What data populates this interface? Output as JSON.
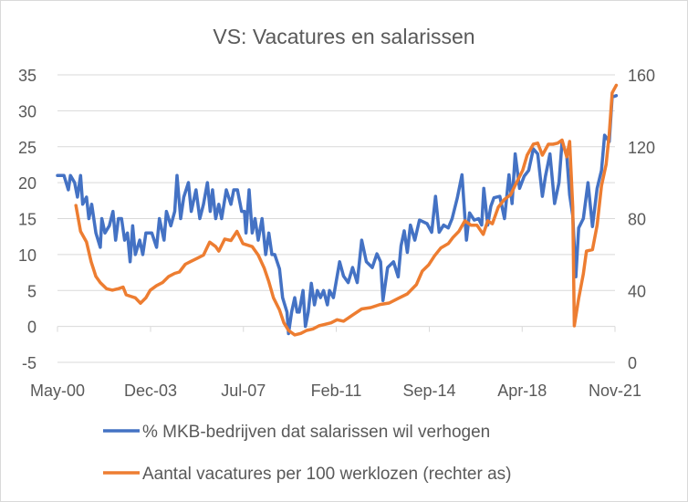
{
  "chart_data": {
    "type": "line",
    "title": "VS: Vacatures en salarissen",
    "xlabel": "",
    "ylabel": "",
    "xlim": [
      2000.33,
      2021.83
    ],
    "ylim_left": [
      -5,
      35
    ],
    "ylim_right": [
      0,
      160
    ],
    "yticks_left": [
      -5,
      0,
      5,
      10,
      15,
      20,
      25,
      30,
      35
    ],
    "yticks_right": [
      0,
      40,
      80,
      120,
      160
    ],
    "xticks": [
      {
        "label": "May-00",
        "x": 2000.33
      },
      {
        "label": "Dec-03",
        "x": 2003.92
      },
      {
        "label": "Jul-07",
        "x": 2007.5
      },
      {
        "label": "Feb-11",
        "x": 2011.08
      },
      {
        "label": "Sep-14",
        "x": 2014.67
      },
      {
        "label": "Apr-18",
        "x": 2018.25
      },
      {
        "label": "Nov-21",
        "x": 2021.83
      }
    ],
    "grid": true,
    "legend_position": "bottom",
    "series": [
      {
        "name": "% MKB-bedrijven dat salarissen wil verhogen",
        "axis": "left",
        "color": "#4472C4",
        "points": [
          [
            2000.33,
            21
          ],
          [
            2000.58,
            21
          ],
          [
            2000.75,
            19
          ],
          [
            2000.83,
            21
          ],
          [
            2000.99,
            20
          ],
          [
            2001.1,
            18
          ],
          [
            2001.22,
            21
          ],
          [
            2001.3,
            17
          ],
          [
            2001.45,
            18
          ],
          [
            2001.54,
            15
          ],
          [
            2001.65,
            17
          ],
          [
            2001.81,
            13
          ],
          [
            2001.98,
            11
          ],
          [
            2002.04,
            15
          ],
          [
            2002.16,
            13
          ],
          [
            2002.33,
            14
          ],
          [
            2002.47,
            16
          ],
          [
            2002.57,
            12
          ],
          [
            2002.68,
            15
          ],
          [
            2002.8,
            15
          ],
          [
            2002.92,
            12
          ],
          [
            2003.03,
            13
          ],
          [
            2003.13,
            9
          ],
          [
            2003.23,
            14
          ],
          [
            2003.33,
            10
          ],
          [
            2003.5,
            12
          ],
          [
            2003.62,
            10
          ],
          [
            2003.74,
            13
          ],
          [
            2003.97,
            13
          ],
          [
            2004.15,
            11
          ],
          [
            2004.26,
            15
          ],
          [
            2004.44,
            12
          ],
          [
            2004.53,
            16
          ],
          [
            2004.7,
            14
          ],
          [
            2004.85,
            16
          ],
          [
            2004.94,
            21
          ],
          [
            2005.08,
            15
          ],
          [
            2005.2,
            18
          ],
          [
            2005.38,
            20
          ],
          [
            2005.49,
            16
          ],
          [
            2005.67,
            19
          ],
          [
            2005.82,
            15
          ],
          [
            2005.96,
            17
          ],
          [
            2006.11,
            20
          ],
          [
            2006.22,
            16
          ],
          [
            2006.31,
            19
          ],
          [
            2006.43,
            15
          ],
          [
            2006.55,
            17
          ],
          [
            2006.66,
            15
          ],
          [
            2006.84,
            19
          ],
          [
            2007.02,
            17
          ],
          [
            2007.13,
            19
          ],
          [
            2007.27,
            19
          ],
          [
            2007.43,
            16
          ],
          [
            2007.54,
            16
          ],
          [
            2007.6,
            13
          ],
          [
            2007.72,
            19
          ],
          [
            2007.84,
            13
          ],
          [
            2007.95,
            15
          ],
          [
            2008.07,
            12
          ],
          [
            2008.22,
            15
          ],
          [
            2008.36,
            10
          ],
          [
            2008.48,
            13
          ],
          [
            2008.6,
            10
          ],
          [
            2008.71,
            10
          ],
          [
            2008.89,
            8
          ],
          [
            2009.01,
            4
          ],
          [
            2009.18,
            2
          ],
          [
            2009.24,
            -1
          ],
          [
            2009.36,
            2
          ],
          [
            2009.48,
            4
          ],
          [
            2009.57,
            2
          ],
          [
            2009.65,
            2
          ],
          [
            2009.8,
            5
          ],
          [
            2009.89,
            0
          ],
          [
            2010.0,
            2
          ],
          [
            2010.12,
            6
          ],
          [
            2010.24,
            3
          ],
          [
            2010.35,
            5
          ],
          [
            2010.47,
            4
          ],
          [
            2010.59,
            5
          ],
          [
            2010.74,
            3
          ],
          [
            2010.82,
            5
          ],
          [
            2010.97,
            4
          ],
          [
            2011.21,
            9
          ],
          [
            2011.36,
            7
          ],
          [
            2011.54,
            6.1
          ],
          [
            2011.71,
            8.2
          ],
          [
            2011.89,
            6.1
          ],
          [
            2012.06,
            12
          ],
          [
            2012.24,
            9
          ],
          [
            2012.47,
            8.2
          ],
          [
            2012.65,
            10.1
          ],
          [
            2012.79,
            9
          ],
          [
            2012.88,
            3.6
          ],
          [
            2013.06,
            8.2
          ],
          [
            2013.29,
            9
          ],
          [
            2013.47,
            6.9
          ],
          [
            2013.58,
            11.2
          ],
          [
            2013.7,
            13.3
          ],
          [
            2013.82,
            10.3
          ],
          [
            2013.94,
            14.1
          ],
          [
            2014.11,
            12
          ],
          [
            2014.29,
            14.8
          ],
          [
            2014.58,
            14.3
          ],
          [
            2014.76,
            13.1
          ],
          [
            2014.91,
            18.1
          ],
          [
            2015.05,
            13.1
          ],
          [
            2015.22,
            14.1
          ],
          [
            2015.4,
            13.7
          ],
          [
            2015.55,
            15
          ],
          [
            2015.75,
            17.9
          ],
          [
            2015.93,
            21.1
          ],
          [
            2016.1,
            12
          ],
          [
            2016.22,
            15.8
          ],
          [
            2016.4,
            14.8
          ],
          [
            2016.57,
            15
          ],
          [
            2016.69,
            14.1
          ],
          [
            2016.77,
            19.2
          ],
          [
            2016.92,
            14.1
          ],
          [
            2017.04,
            16.7
          ],
          [
            2017.16,
            17.9
          ],
          [
            2017.39,
            18.1
          ],
          [
            2017.57,
            15
          ],
          [
            2017.74,
            21.1
          ],
          [
            2017.86,
            17.1
          ],
          [
            2017.98,
            24
          ],
          [
            2018.15,
            19.2
          ],
          [
            2018.33,
            20.9
          ],
          [
            2018.5,
            21.7
          ],
          [
            2018.68,
            24.7
          ],
          [
            2018.85,
            24
          ],
          [
            2019.03,
            18.1
          ],
          [
            2019.15,
            20.9
          ],
          [
            2019.32,
            24
          ],
          [
            2019.5,
            17.1
          ],
          [
            2019.67,
            20
          ],
          [
            2019.79,
            25.7
          ],
          [
            2019.97,
            23.8
          ],
          [
            2020.08,
            18.3
          ],
          [
            2020.2,
            15.4
          ],
          [
            2020.32,
            6.9
          ],
          [
            2020.43,
            13.7
          ],
          [
            2020.61,
            15
          ],
          [
            2020.79,
            20
          ],
          [
            2020.96,
            13.9
          ],
          [
            2021.14,
            19.2
          ],
          [
            2021.31,
            21.7
          ],
          [
            2021.43,
            26.6
          ],
          [
            2021.61,
            25.7
          ],
          [
            2021.72,
            31.9
          ],
          [
            2021.88,
            32.1
          ]
        ]
      },
      {
        "name": "Aantal vacatures per 100 werklozen (rechter as)",
        "axis": "right",
        "color": "#ED7D31",
        "points": [
          [
            2001.04,
            87.3
          ],
          [
            2001.22,
            72.9
          ],
          [
            2001.45,
            67
          ],
          [
            2001.63,
            56
          ],
          [
            2001.81,
            47.8
          ],
          [
            2001.98,
            44.4
          ],
          [
            2002.22,
            41
          ],
          [
            2002.45,
            40.2
          ],
          [
            2002.68,
            41
          ],
          [
            2002.86,
            41.9
          ],
          [
            2002.98,
            37.6
          ],
          [
            2003.15,
            36.8
          ],
          [
            2003.33,
            35.9
          ],
          [
            2003.53,
            32.9
          ],
          [
            2003.74,
            35.9
          ],
          [
            2003.91,
            40.2
          ],
          [
            2004.15,
            42.7
          ],
          [
            2004.38,
            44.4
          ],
          [
            2004.62,
            47.8
          ],
          [
            2004.85,
            49.5
          ],
          [
            2005.03,
            50.3
          ],
          [
            2005.26,
            54.6
          ],
          [
            2005.49,
            56.3
          ],
          [
            2005.73,
            58
          ],
          [
            2005.96,
            59.7
          ],
          [
            2006.2,
            66.9
          ],
          [
            2006.43,
            64.4
          ],
          [
            2006.55,
            61.9
          ],
          [
            2006.78,
            68.6
          ],
          [
            2007.02,
            67.8
          ],
          [
            2007.25,
            72.9
          ],
          [
            2007.48,
            66.1
          ],
          [
            2007.84,
            64.4
          ],
          [
            2008.07,
            59.7
          ],
          [
            2008.3,
            52.5
          ],
          [
            2008.48,
            44.9
          ],
          [
            2008.66,
            35.9
          ],
          [
            2008.89,
            29.2
          ],
          [
            2009.06,
            22
          ],
          [
            2009.24,
            17.8
          ],
          [
            2009.48,
            15.3
          ],
          [
            2009.71,
            16.1
          ],
          [
            2009.94,
            17.8
          ],
          [
            2010.18,
            18.6
          ],
          [
            2010.41,
            20.3
          ],
          [
            2010.65,
            21.2
          ],
          [
            2010.88,
            22
          ],
          [
            2011.11,
            23.7
          ],
          [
            2011.36,
            22.9
          ],
          [
            2011.71,
            26.3
          ],
          [
            2012.06,
            29.7
          ],
          [
            2012.41,
            30.5
          ],
          [
            2012.77,
            32.2
          ],
          [
            2013.12,
            33
          ],
          [
            2013.47,
            35.6
          ],
          [
            2013.82,
            38.1
          ],
          [
            2014.17,
            43.2
          ],
          [
            2014.4,
            50.8
          ],
          [
            2014.64,
            54.2
          ],
          [
            2014.87,
            59.3
          ],
          [
            2015.11,
            63.6
          ],
          [
            2015.4,
            66.1
          ],
          [
            2015.58,
            69.5
          ],
          [
            2015.81,
            72.9
          ],
          [
            2016.04,
            78.8
          ],
          [
            2016.28,
            76.3
          ],
          [
            2016.51,
            76.3
          ],
          [
            2016.75,
            71.2
          ],
          [
            2016.92,
            78.8
          ],
          [
            2017.1,
            77.1
          ],
          [
            2017.33,
            86.4
          ],
          [
            2017.57,
            90.7
          ],
          [
            2017.8,
            93.2
          ],
          [
            2018.03,
            100
          ],
          [
            2018.27,
            106.8
          ],
          [
            2018.44,
            115.3
          ],
          [
            2018.68,
            121.4
          ],
          [
            2018.85,
            122
          ],
          [
            2019.03,
            115.3
          ],
          [
            2019.26,
            121.4
          ],
          [
            2019.44,
            121.4
          ],
          [
            2019.62,
            122
          ],
          [
            2019.79,
            123.7
          ],
          [
            2019.97,
            114.4
          ],
          [
            2020.08,
            122.9
          ],
          [
            2020.2,
            86.4
          ],
          [
            2020.26,
            20.3
          ],
          [
            2020.43,
            35.6
          ],
          [
            2020.61,
            49.2
          ],
          [
            2020.73,
            61.9
          ],
          [
            2020.96,
            62.7
          ],
          [
            2021.14,
            76.3
          ],
          [
            2021.31,
            98.3
          ],
          [
            2021.49,
            110.2
          ],
          [
            2021.61,
            127.1
          ],
          [
            2021.72,
            150
          ],
          [
            2021.88,
            154.2
          ]
        ]
      }
    ]
  }
}
